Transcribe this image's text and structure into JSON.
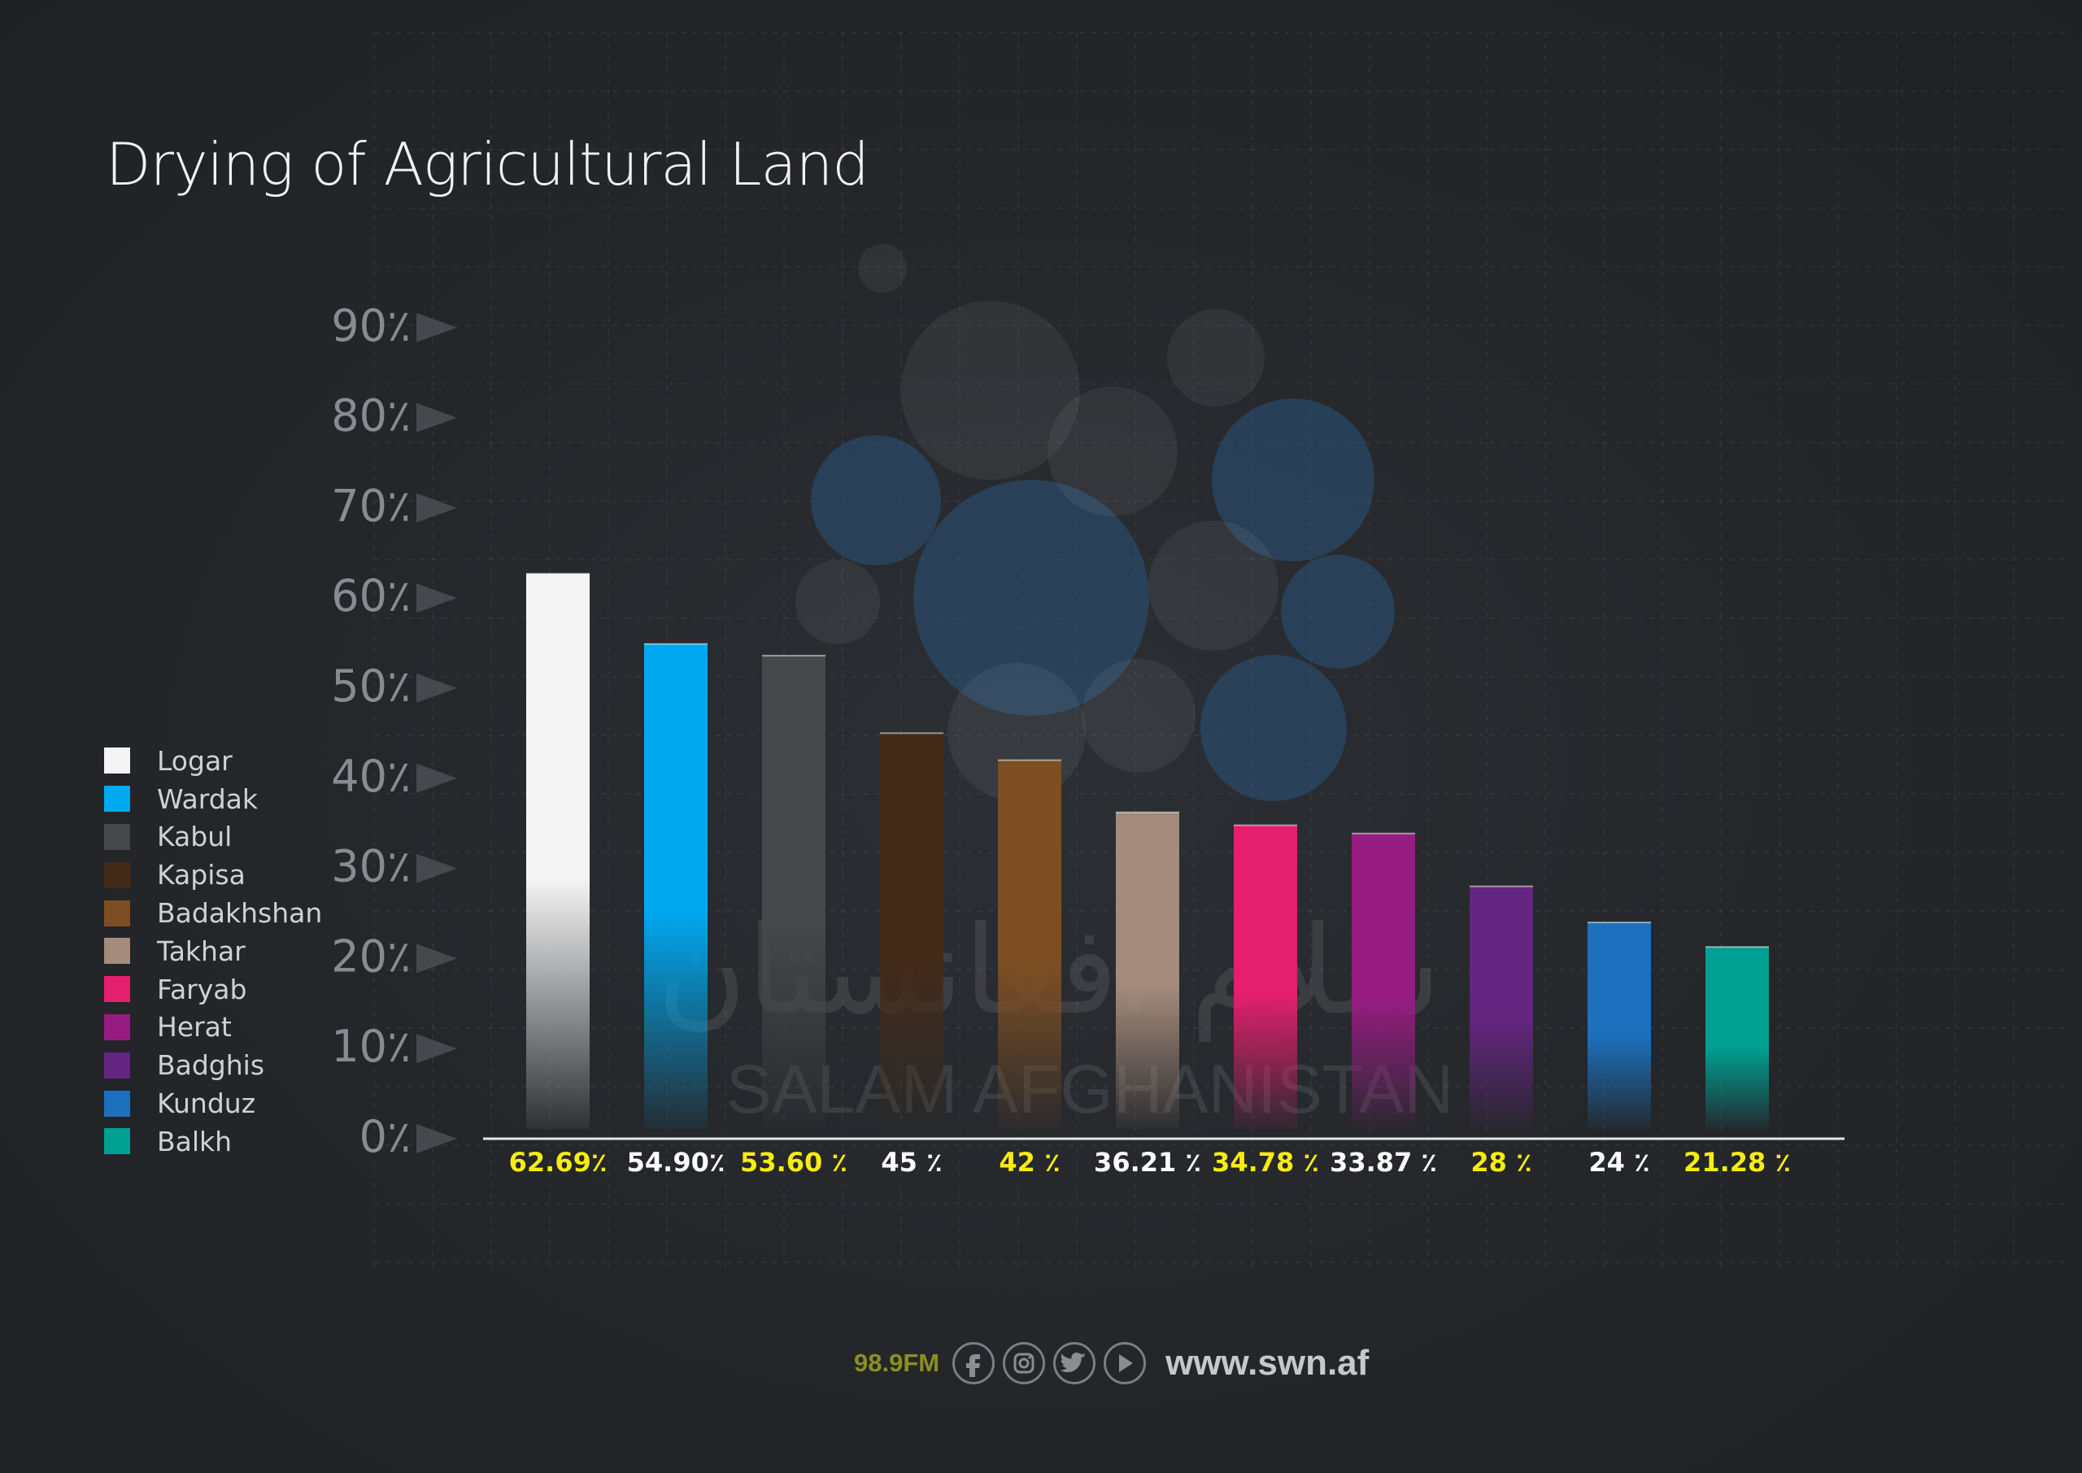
{
  "title": "Drying of Agricultural Land",
  "chart_data": {
    "type": "bar",
    "title": "Drying of Agricultural Land",
    "xlabel": "",
    "ylabel": "",
    "ylim": [
      0,
      90
    ],
    "yticks": [
      "0٪",
      "10٪",
      "20٪",
      "30٪",
      "40٪",
      "50٪",
      "60٪",
      "70٪",
      "80٪",
      "90٪"
    ],
    "grid": true,
    "legend_position": "left",
    "categories": [
      "Logar",
      "Wardak",
      "Kabul",
      "Kapisa",
      "Badakhshan",
      "Takhar",
      "Faryab",
      "Herat",
      "Badghis",
      "Kunduz",
      "Balkh"
    ],
    "values": [
      62.69,
      54.9,
      53.6,
      45,
      42,
      36.21,
      34.78,
      33.87,
      28,
      24,
      21.28
    ],
    "value_labels": [
      "62.69٪",
      "54.90٪",
      "53.60 ٪",
      "45 ٪",
      "42 ٪",
      "36.21 ٪",
      "34.78 ٪",
      "33.87 ٪",
      "28 ٪",
      "24 ٪",
      "21.28 ٪"
    ],
    "colors": [
      "#f4f4f4",
      "#00a8f0",
      "#46484b",
      "#442a18",
      "#7e4e23",
      "#a48b7b",
      "#e41f6e",
      "#971c82",
      "#63257f",
      "#1c70bd",
      "#00a093"
    ],
    "label_colors": [
      "#f7ec10",
      "#ffffff",
      "#f7ec10",
      "#ffffff",
      "#f7ec10",
      "#ffffff",
      "#f7ec10",
      "#ffffff",
      "#f7ec10",
      "#ffffff",
      "#f7ec10"
    ]
  },
  "watermark": {
    "arabic": "سلام افغانستان",
    "latin": "SALAM AFGHANISTAN"
  },
  "footer": {
    "frequency": "98.9FM",
    "url": "www.swn.af",
    "icons": [
      "facebook-icon",
      "instagram-icon",
      "twitter-icon",
      "youtube-icon"
    ]
  }
}
